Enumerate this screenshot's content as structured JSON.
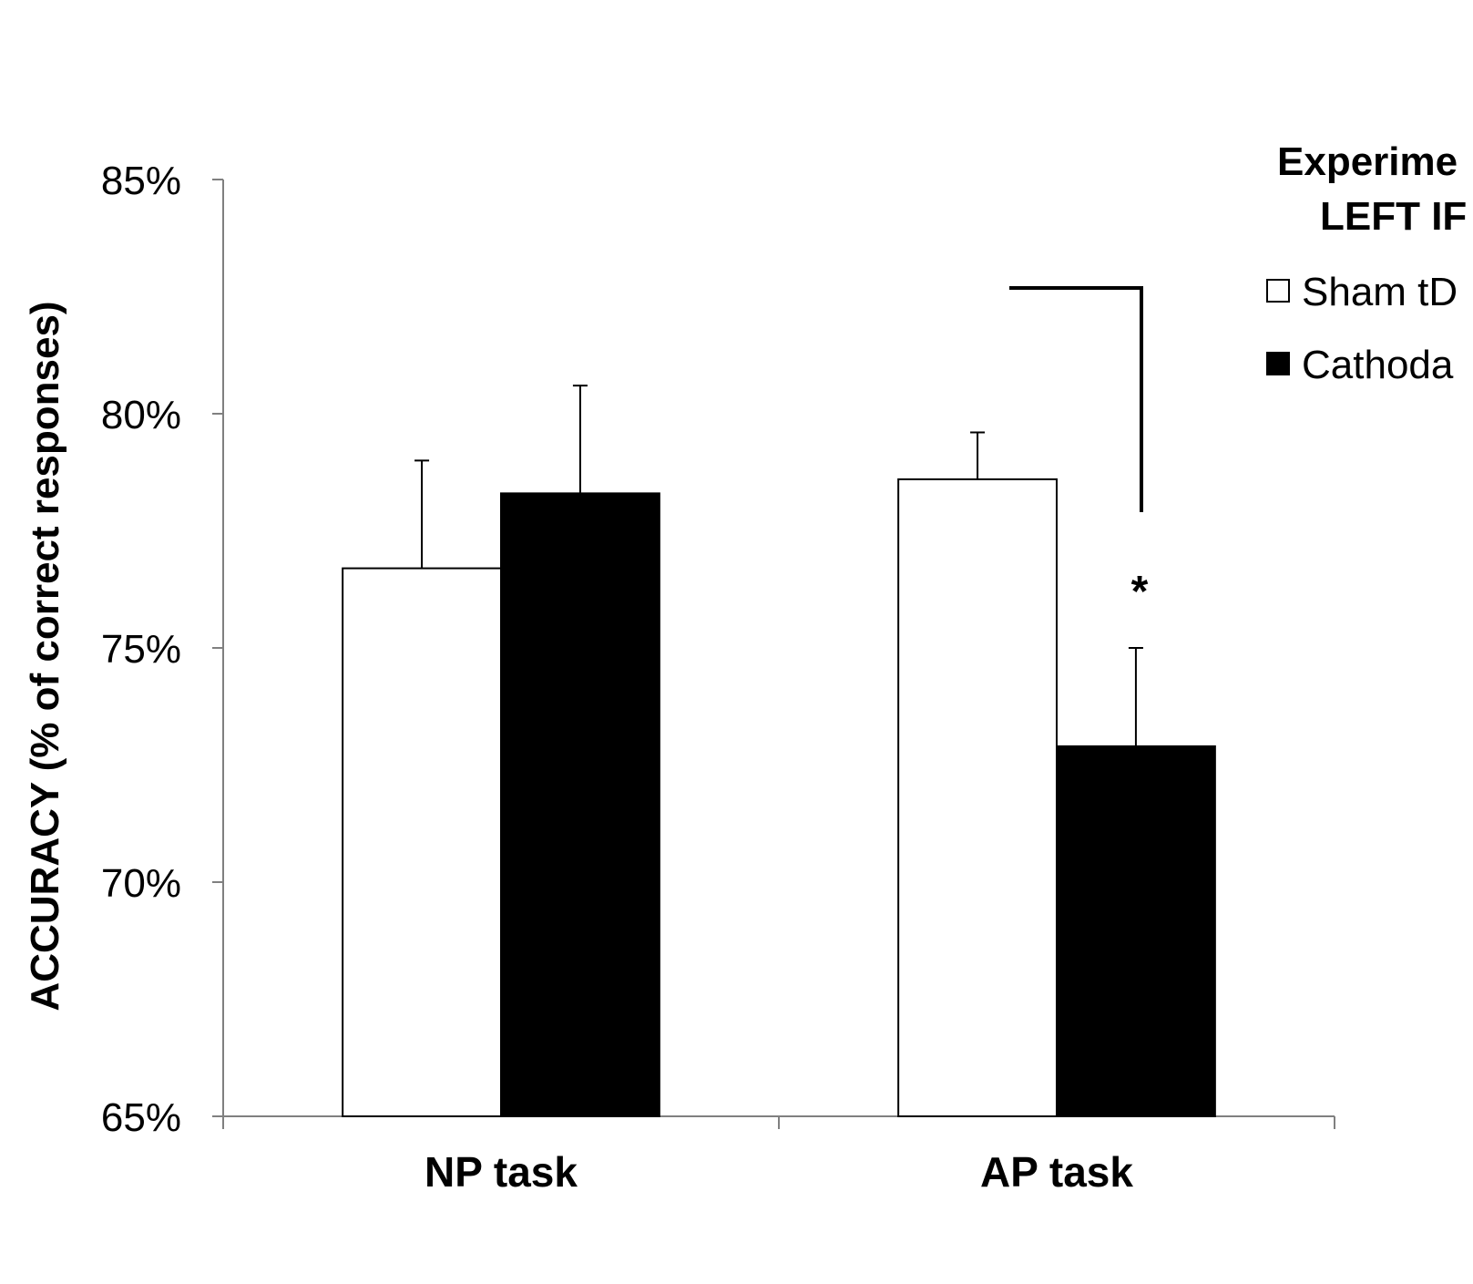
{
  "chart_data": {
    "type": "bar",
    "categories": [
      "NP task",
      "AP task"
    ],
    "series": [
      {
        "name": "Sham tD",
        "values": [
          76.7,
          78.6
        ],
        "errors": [
          2.3,
          1.0
        ],
        "fill": "#ffffff"
      },
      {
        "name": "Cathoda",
        "values": [
          78.3,
          72.9
        ],
        "errors": [
          2.3,
          2.1
        ],
        "fill": "#000000"
      }
    ],
    "ylim": [
      65,
      85
    ],
    "yticks": [
      "65%",
      "70%",
      "75%",
      "80%",
      "85%"
    ],
    "ytick_values": [
      65,
      70,
      75,
      80,
      85
    ],
    "ylabel": "ACCURACY (% of correct responses)",
    "legend": {
      "title_lines": [
        "Experime",
        "LEFT IF"
      ],
      "placement": "top-right"
    },
    "annotations": [
      {
        "text": "*",
        "category": "AP task",
        "series": "Cathoda"
      }
    ]
  }
}
